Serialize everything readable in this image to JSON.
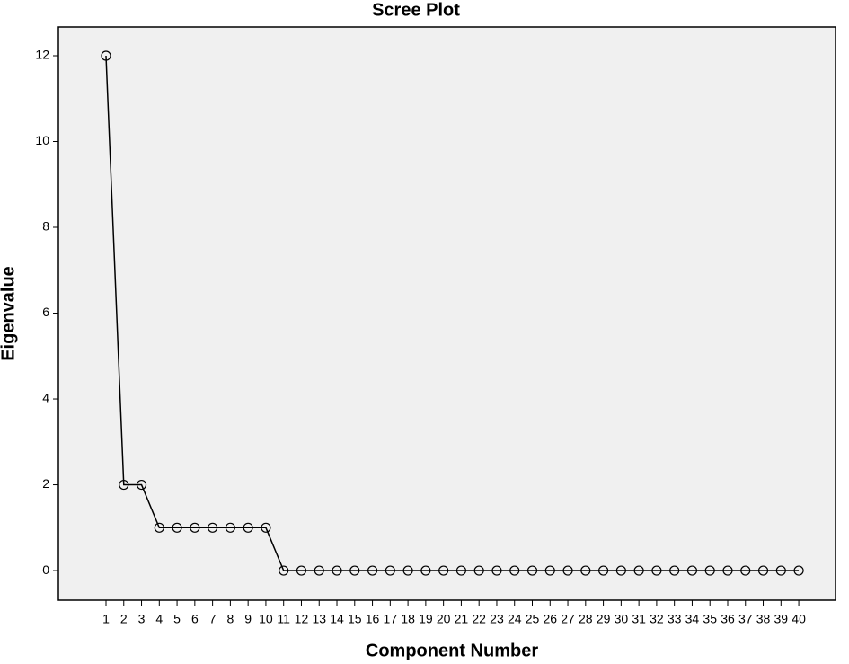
{
  "chart_data": {
    "type": "line",
    "title": "Scree Plot",
    "x_label": "Component Number",
    "y_label": "Eigenvalue",
    "x": [
      1,
      2,
      3,
      4,
      5,
      6,
      7,
      8,
      9,
      10,
      11,
      12,
      13,
      14,
      15,
      16,
      17,
      18,
      19,
      20,
      21,
      22,
      23,
      24,
      25,
      26,
      27,
      28,
      29,
      30,
      31,
      32,
      33,
      34,
      35,
      36,
      37,
      38,
      39,
      40
    ],
    "values": [
      12,
      2,
      2,
      1,
      1,
      1,
      1,
      1,
      1,
      1,
      0,
      0,
      0,
      0,
      0,
      0,
      0,
      0,
      0,
      0,
      0,
      0,
      0,
      0,
      0,
      0,
      0,
      0,
      0,
      0,
      0,
      0,
      0,
      0,
      0,
      0,
      0,
      0,
      0,
      0
    ],
    "color": "#000000",
    "xlim": [
      -1.68,
      42.07
    ],
    "xticks": [
      1,
      2,
      3,
      4,
      5,
      6,
      7,
      8,
      9,
      10,
      11,
      12,
      13,
      14,
      15,
      16,
      17,
      18,
      19,
      20,
      21,
      22,
      23,
      24,
      25,
      26,
      27,
      28,
      29,
      30,
      31,
      32,
      33,
      34,
      35,
      36,
      37,
      38,
      39,
      40
    ],
    "ylim": [
      -0.69,
      12.67
    ],
    "yticks": [
      0,
      2,
      4,
      6,
      8,
      10,
      12
    ]
  }
}
